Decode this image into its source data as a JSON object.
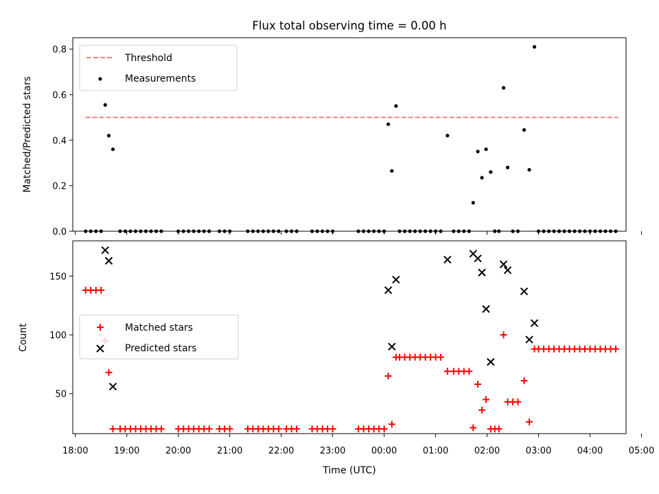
{
  "chart_data": [
    {
      "type": "scatter",
      "title": "Flux total observing time = 0.00 h",
      "ylabel": "Matched/Predicted stars",
      "ylim": [
        0,
        0.85
      ],
      "yticks": [
        0.0,
        0.2,
        0.4,
        0.6,
        0.8
      ],
      "ytick_labels": [
        "0.0",
        "0.2",
        "0.4",
        "0.6",
        "0.8"
      ],
      "legend": {
        "placement": "upper-left",
        "entries": [
          "Threshold",
          "Measurements"
        ]
      },
      "threshold": {
        "name": "Threshold",
        "value": 0.5,
        "x_start": 18.2,
        "x_end": 28.55,
        "color": "#ff7f7f",
        "style": "dashed"
      },
      "series": [
        {
          "name": "Measurements",
          "color": "#000000",
          "marker": "dot",
          "x": [
            18.2,
            18.3,
            18.4,
            18.5,
            18.58,
            18.65,
            18.73,
            18.87,
            18.97,
            19.07,
            19.17,
            19.27,
            19.37,
            19.47,
            19.57,
            19.67,
            20.0,
            20.1,
            20.2,
            20.3,
            20.4,
            20.5,
            20.6,
            20.8,
            20.9,
            21.0,
            21.35,
            21.45,
            21.55,
            21.65,
            21.75,
            21.85,
            21.95,
            22.1,
            22.2,
            22.3,
            22.6,
            22.7,
            22.8,
            22.9,
            23.0,
            23.5,
            23.6,
            23.7,
            23.8,
            23.9,
            24.0,
            24.08,
            24.15,
            24.23,
            24.3,
            24.4,
            24.5,
            24.6,
            24.7,
            24.8,
            24.9,
            25.0,
            25.1,
            25.23,
            25.35,
            25.45,
            25.55,
            25.65,
            25.73,
            25.82,
            25.9,
            25.98,
            26.07,
            26.15,
            26.23,
            26.32,
            26.4,
            26.5,
            26.6,
            26.72,
            26.82,
            26.92,
            27.0,
            27.1,
            27.2,
            27.3,
            27.4,
            27.5,
            27.6,
            27.7,
            27.8,
            27.9,
            28.0,
            28.1,
            28.2,
            28.3,
            28.4,
            28.5
          ],
          "y": [
            0,
            0,
            0,
            0,
            0.555,
            0.42,
            0.36,
            0,
            0,
            0,
            0,
            0,
            0,
            0,
            0,
            0,
            0,
            0,
            0,
            0,
            0,
            0,
            0,
            0,
            0,
            0,
            0,
            0,
            0,
            0,
            0,
            0,
            0,
            0,
            0,
            0,
            0,
            0,
            0,
            0,
            0,
            0,
            0,
            0,
            0,
            0,
            0,
            0.47,
            0.265,
            0.55,
            0,
            0,
            0,
            0,
            0,
            0,
            0,
            0,
            0,
            0.42,
            0,
            0,
            0,
            0,
            0.125,
            0.35,
            0.235,
            0.36,
            0.26,
            0,
            0,
            0.63,
            0.28,
            0,
            0,
            0.445,
            0.27,
            0.81,
            0,
            0,
            0,
            0,
            0,
            0,
            0,
            0,
            0,
            0,
            0,
            0,
            0,
            0,
            0,
            0
          ]
        }
      ]
    },
    {
      "type": "scatter",
      "xlabel": "Time (UTC)",
      "ylabel": "Count",
      "xlim": [
        17.95,
        28.7
      ],
      "ylim": [
        16,
        180
      ],
      "xticks": [
        18,
        19,
        20,
        21,
        22,
        23,
        24,
        25,
        26,
        27,
        28,
        29
      ],
      "xtick_labels": [
        "18:00",
        "19:00",
        "20:00",
        "21:00",
        "22:00",
        "23:00",
        "00:00",
        "01:00",
        "02:00",
        "03:00",
        "04:00",
        "05:00"
      ],
      "yticks": [
        50,
        100,
        150
      ],
      "ytick_labels": [
        "50",
        "100",
        "150"
      ],
      "legend": {
        "placement": "center-left",
        "entries": [
          "Matched stars",
          "Predicted stars"
        ]
      },
      "series": [
        {
          "name": "Matched stars",
          "color": "#ff0000",
          "marker": "plus",
          "x": [
            18.2,
            18.3,
            18.4,
            18.5,
            18.58,
            18.65,
            18.73,
            18.87,
            18.97,
            19.07,
            19.17,
            19.27,
            19.37,
            19.47,
            19.57,
            19.67,
            20.0,
            20.1,
            20.2,
            20.3,
            20.4,
            20.5,
            20.6,
            20.8,
            20.9,
            21.0,
            21.35,
            21.45,
            21.55,
            21.65,
            21.75,
            21.85,
            21.95,
            22.1,
            22.2,
            22.3,
            22.6,
            22.7,
            22.8,
            22.9,
            23.0,
            23.5,
            23.6,
            23.7,
            23.8,
            23.9,
            24.0,
            24.08,
            24.15,
            24.23,
            24.3,
            24.4,
            24.5,
            24.6,
            24.7,
            24.8,
            24.9,
            25.0,
            25.1,
            25.23,
            25.35,
            25.45,
            25.55,
            25.65,
            25.73,
            25.82,
            25.9,
            25.98,
            26.07,
            26.15,
            26.23,
            26.32,
            26.4,
            26.5,
            26.6,
            26.72,
            26.82,
            26.92,
            27.0,
            27.1,
            27.2,
            27.3,
            27.4,
            27.5,
            27.6,
            27.7,
            27.8,
            27.9,
            28.0,
            28.1,
            28.2,
            28.3,
            28.4,
            28.5
          ],
          "y": [
            138,
            138,
            138,
            138,
            95,
            68,
            20,
            20,
            20,
            20,
            20,
            20,
            20,
            20,
            20,
            20,
            20,
            20,
            20,
            20,
            20,
            20,
            20,
            20,
            20,
            20,
            20,
            20,
            20,
            20,
            20,
            20,
            20,
            20,
            20,
            20,
            20,
            20,
            20,
            20,
            20,
            20,
            20,
            20,
            20,
            20,
            20,
            65,
            24,
            81,
            81,
            81,
            81,
            81,
            81,
            81,
            81,
            81,
            81,
            69,
            69,
            69,
            69,
            69,
            21,
            58,
            36,
            45,
            20,
            20,
            20,
            100,
            43,
            43,
            43,
            61,
            26,
            88,
            88,
            88,
            88,
            88,
            88,
            88,
            88,
            88,
            88,
            88,
            88,
            88,
            88,
            88,
            88,
            88
          ]
        },
        {
          "name": "Predicted stars",
          "color": "#000000",
          "marker": "x",
          "x": [
            18.58,
            18.65,
            18.73,
            24.08,
            24.15,
            24.23,
            25.23,
            25.73,
            25.82,
            25.9,
            25.98,
            26.07,
            26.32,
            26.4,
            26.72,
            26.82,
            26.92
          ],
          "y": [
            172,
            163,
            56,
            138,
            90,
            147,
            164,
            169,
            165,
            153,
            122,
            77,
            160,
            155,
            137,
            96,
            110
          ]
        }
      ]
    }
  ]
}
